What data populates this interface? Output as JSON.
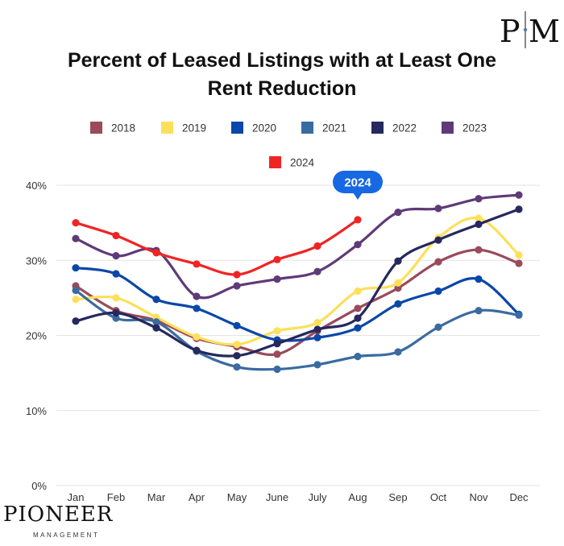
{
  "brand": {
    "corner_logo_text": "PM",
    "name": "PIONEER",
    "subtitle": "MANAGEMENT"
  },
  "chart_data": {
    "type": "line",
    "title": "Percent of Leased Listings with at Least One Rent Reduction",
    "title_lines": [
      "Percent of Leased Listings with at Least One",
      "Rent Reduction"
    ],
    "categories": [
      "Jan",
      "Feb",
      "Mar",
      "Apr",
      "May",
      "June",
      "July",
      "Aug",
      "Sep",
      "Oct",
      "Nov",
      "Dec"
    ],
    "ylim": [
      0,
      40
    ],
    "yticks": [
      0,
      10,
      20,
      30,
      40
    ],
    "ytick_labels": [
      "0%",
      "10%",
      "20%",
      "30%",
      "40%"
    ],
    "grid": "horizontal",
    "legend_position": "top",
    "callout": {
      "series": "2024",
      "category": "Aug",
      "text": "2024"
    },
    "series": [
      {
        "name": "2018",
        "color": "#9a4a5c",
        "values": [
          26.6,
          23.3,
          22.0,
          19.6,
          18.5,
          17.5,
          20.6,
          23.6,
          26.3,
          29.8,
          31.4,
          29.6
        ]
      },
      {
        "name": "2019",
        "color": "#fde05a",
        "values": [
          24.8,
          25.0,
          22.4,
          19.8,
          18.8,
          20.6,
          21.7,
          25.9,
          27.0,
          33.0,
          35.6,
          30.7
        ]
      },
      {
        "name": "2020",
        "color": "#0b47a8",
        "values": [
          29.0,
          28.2,
          24.8,
          23.6,
          21.3,
          19.4,
          19.7,
          21.0,
          24.2,
          25.9,
          27.5,
          22.8
        ]
      },
      {
        "name": "2021",
        "color": "#3a6ba0",
        "values": [
          26.0,
          22.3,
          21.8,
          17.9,
          15.8,
          15.5,
          16.1,
          17.2,
          17.8,
          21.1,
          23.3,
          22.7
        ]
      },
      {
        "name": "2022",
        "color": "#26285e",
        "values": [
          21.9,
          23.0,
          21.0,
          18.0,
          17.3,
          18.9,
          20.8,
          22.3,
          29.9,
          32.7,
          34.8,
          36.8
        ]
      },
      {
        "name": "2023",
        "color": "#5f3a78",
        "values": [
          32.9,
          30.6,
          31.3,
          25.2,
          26.6,
          27.5,
          28.5,
          32.1,
          36.4,
          36.9,
          38.2,
          38.7
        ]
      },
      {
        "name": "2024",
        "color": "#f02424",
        "values": [
          35.0,
          33.3,
          31.0,
          29.5,
          28.1,
          30.1,
          31.9,
          35.4,
          null,
          null,
          null,
          null
        ]
      }
    ]
  }
}
